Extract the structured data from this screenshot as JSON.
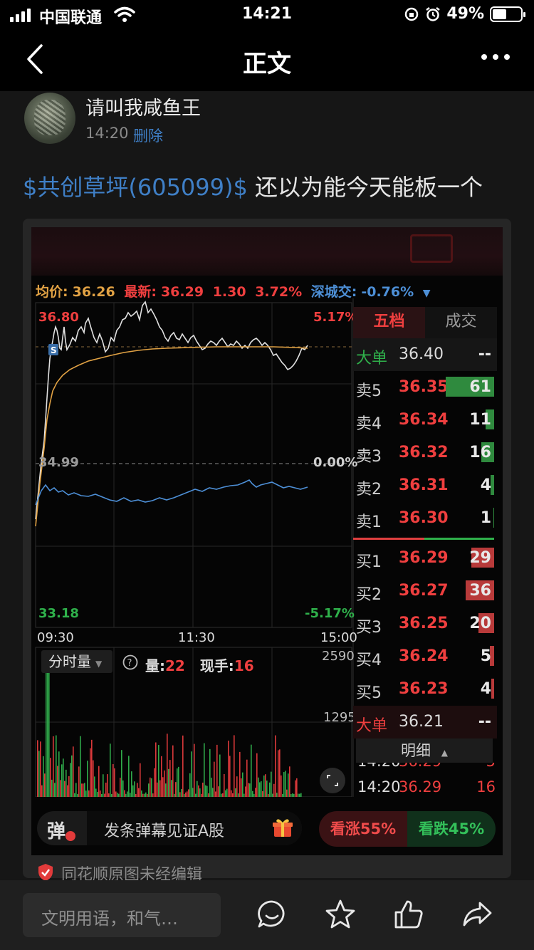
{
  "status_bar": {
    "carrier": "中国联通",
    "time": "14:21",
    "battery": "49%",
    "battery_level": 0.49
  },
  "nav": {
    "title": "正文"
  },
  "post": {
    "author": "请叫我咸鱼王",
    "time": "14:20",
    "delete_label": "删除",
    "stock_tag": "$共创草坪(605099)$",
    "text": " 还以为能今天能板一个"
  },
  "quote": {
    "avg_label": "均价:",
    "avg_value": "36.26",
    "latest_label": "最新:",
    "latest_value": "36.29",
    "change": "1.30",
    "change_pct": "3.72%",
    "index_label": "深城交:",
    "index_value": "-0.76%",
    "price_high": "36.80",
    "price_mid": "34.99",
    "price_low": "33.18",
    "pct_high": "5.17%",
    "pct_mid": "0.00%",
    "pct_low": "-5.17%",
    "time_start": "09:30",
    "time_mid": "11:30",
    "time_end": "15:00",
    "vol_max": "2590",
    "vol_mid": "1295",
    "vol_selector": "分时量",
    "vol_label": "量:",
    "vol_value": "22",
    "hand_label": "现手:",
    "hand_value": "16"
  },
  "order_book": {
    "tab_active": "五档",
    "tab_other": "成交",
    "big_ask": {
      "key": "大单",
      "price": "36.40",
      "vol": "--"
    },
    "asks": [
      {
        "key": "卖5",
        "price": "36.35",
        "vol": "61",
        "frac": 0.95
      },
      {
        "key": "卖4",
        "price": "36.34",
        "vol": "11",
        "frac": 0.17
      },
      {
        "key": "卖3",
        "price": "36.32",
        "vol": "16",
        "frac": 0.25
      },
      {
        "key": "卖2",
        "price": "36.31",
        "vol": "4",
        "frac": 0.07
      },
      {
        "key": "卖1",
        "price": "36.30",
        "vol": "1",
        "frac": 0.02
      }
    ],
    "bids": [
      {
        "key": "买1",
        "price": "36.29",
        "vol": "29",
        "frac": 0.45
      },
      {
        "key": "买2",
        "price": "36.27",
        "vol": "36",
        "frac": 0.56
      },
      {
        "key": "买3",
        "price": "36.25",
        "vol": "20",
        "frac": 0.31
      },
      {
        "key": "买4",
        "price": "36.24",
        "vol": "5",
        "frac": 0.08
      },
      {
        "key": "买5",
        "price": "36.23",
        "vol": "4",
        "frac": 0.06
      }
    ],
    "big_bid": {
      "key": "大单",
      "price": "36.21",
      "vol": "--"
    },
    "detail_label": "明细",
    "trade_partial": {
      "time": "14:20",
      "price": "36.29",
      "vol": "5"
    },
    "trade_last": {
      "time": "14:20",
      "price": "36.29",
      "vol": "16"
    }
  },
  "danmu": {
    "dan_label": "弹",
    "placeholder": "发条弹幕见证A股",
    "up_label": "看涨55%",
    "down_label": "看跌45%"
  },
  "source_note": "同花顺原图未经编辑",
  "bottom": {
    "comment_placeholder": "文明用语，和气…"
  },
  "colors": {
    "up": "#ef3f3f",
    "down": "#2fb14b",
    "link": "#3f7fc6",
    "avg_line": "#e1a244"
  }
}
